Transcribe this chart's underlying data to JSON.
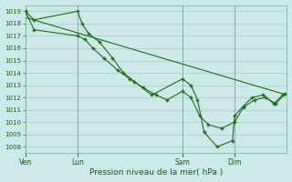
{
  "background_color": "#cce8e8",
  "grid_color": "#aacccc",
  "line_color": "#1a6e1a",
  "marker_color": "#1a6e1a",
  "xlabel": "Pression niveau de la mer( hPa )",
  "ylim": [
    1007.5,
    1019.5
  ],
  "yticks": [
    1008,
    1009,
    1010,
    1011,
    1012,
    1013,
    1014,
    1015,
    1016,
    1017,
    1018,
    1019
  ],
  "xtick_labels": [
    "Ven",
    "Lun",
    "Sam",
    "Dim"
  ],
  "xtick_positions": [
    0,
    48,
    144,
    192
  ],
  "xlim": [
    0,
    240
  ],
  "series1_x": [
    0,
    8,
    48,
    52,
    58,
    68,
    80,
    90,
    100,
    116,
    144,
    152,
    158,
    164,
    176,
    190,
    192,
    200,
    208,
    218,
    228,
    236
  ],
  "series1_y": [
    1019,
    1018.3,
    1019,
    1018,
    1017.2,
    1016.5,
    1015.2,
    1014.0,
    1013.3,
    1012.2,
    1013.5,
    1013.0,
    1011.8,
    1009.2,
    1008.0,
    1008.5,
    1010.5,
    1011.3,
    1012.0,
    1012.2,
    1011.5,
    1012.2
  ],
  "series2_x": [
    0,
    8,
    48,
    55,
    62,
    72,
    85,
    96,
    108,
    120,
    130,
    144,
    152,
    160,
    168,
    180,
    192,
    200,
    210,
    220,
    230,
    238
  ],
  "series2_y": [
    1019,
    1017.5,
    1017.0,
    1016.7,
    1016.0,
    1015.2,
    1014.2,
    1013.5,
    1012.8,
    1012.2,
    1011.8,
    1012.5,
    1012.0,
    1010.5,
    1009.8,
    1009.5,
    1010.0,
    1011.2,
    1011.8,
    1012.0,
    1011.5,
    1012.3
  ],
  "series3_x": [
    0,
    240
  ],
  "series3_y": [
    1018.5,
    1012.2
  ]
}
